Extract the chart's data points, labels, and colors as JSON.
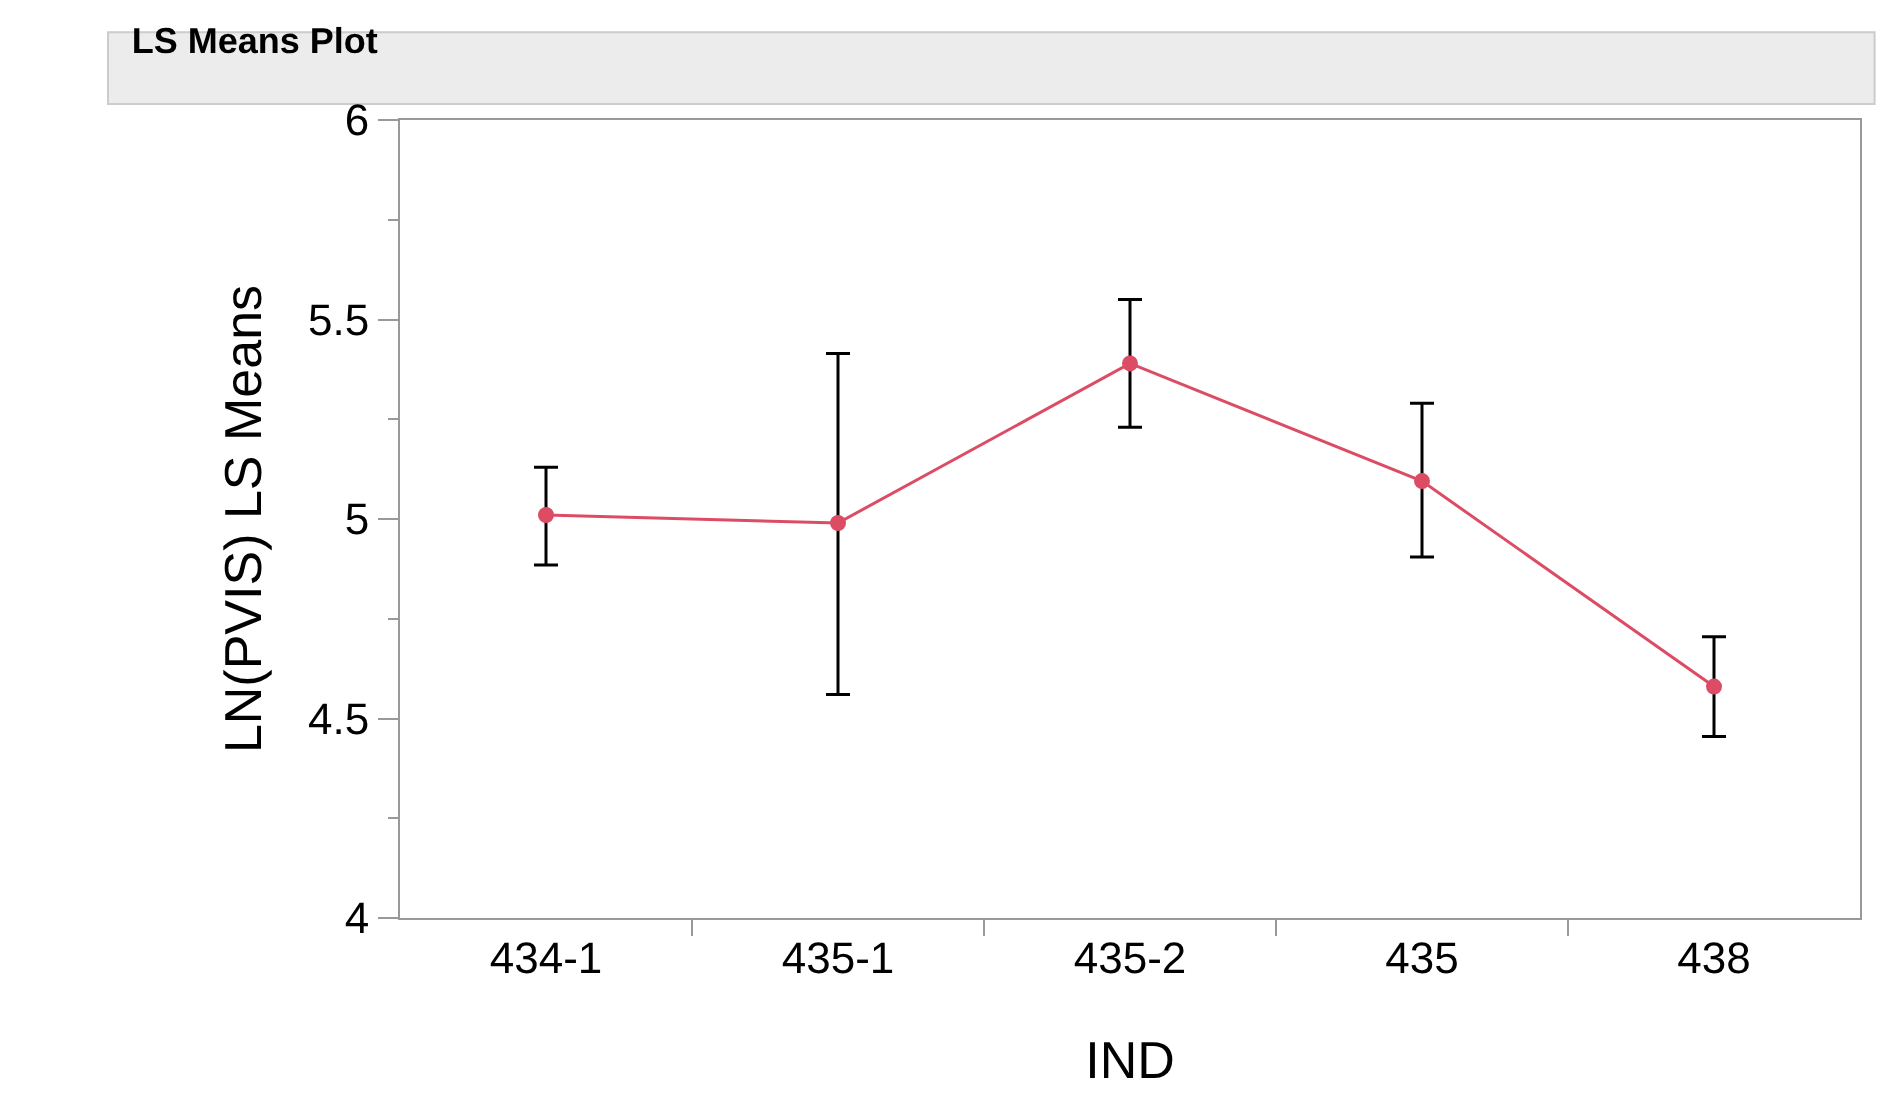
{
  "chart_data": {
    "type": "line",
    "title": "LS Means Plot",
    "xlabel": "IND",
    "ylabel": "LN(PVIS) LS Means",
    "categories": [
      "434-1",
      "435-1",
      "435-2",
      "435",
      "438"
    ],
    "series": [
      {
        "color": "#dc4c64",
        "values": [
          5.01,
          4.99,
          5.39,
          5.095,
          4.58
        ],
        "errors": [
          [
            4.885,
            5.13
          ],
          [
            4.56,
            5.415
          ],
          [
            5.23,
            5.55
          ],
          [
            4.905,
            5.29
          ],
          [
            4.455,
            4.705
          ]
        ]
      }
    ],
    "ylim": [
      4,
      6
    ],
    "yticks": [
      4,
      4.5,
      5,
      5.5,
      6
    ],
    "legend": false,
    "marker": "circle",
    "line_style": "solid"
  }
}
